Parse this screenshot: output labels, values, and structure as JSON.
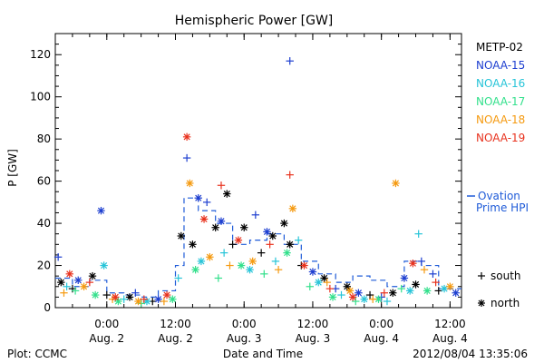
{
  "chart_data": {
    "type": "scatter",
    "title": "Hemispheric Power [GW]",
    "ylabel": "P [GW]",
    "xlabel": "Date and Time",
    "ylim": [
      0,
      130
    ],
    "y_ticks": [
      0,
      20,
      40,
      60,
      80,
      100,
      120
    ],
    "x_ticks": [
      {
        "time": "2012-08-02T00:00",
        "line1": "0:00",
        "line2": "Aug. 2"
      },
      {
        "time": "2012-08-02T12:00",
        "line1": "12:00",
        "line2": "Aug. 2"
      },
      {
        "time": "2012-08-03T00:00",
        "line1": "0:00",
        "line2": "Aug. 3"
      },
      {
        "time": "2012-08-03T12:00",
        "line1": "12:00",
        "line2": "Aug. 3"
      },
      {
        "time": "2012-08-04T00:00",
        "line1": "0:00",
        "line2": "Aug. 4"
      },
      {
        "time": "2012-08-04T12:00",
        "line1": "12:00",
        "line2": "Aug. 4"
      }
    ],
    "x_range": [
      "2012-08-01T15:00",
      "2012-08-04T14:00"
    ],
    "legend_position": "right",
    "symbol_legend": [
      {
        "symbol": "+",
        "label": "south"
      },
      {
        "symbol": "*",
        "label": "north"
      }
    ],
    "series": [
      {
        "name": "METP-02",
        "color": "#000000",
        "points": [
          {
            "x": "2012-08-01T16:00",
            "y": 12,
            "hemisphere": "north"
          },
          {
            "x": "2012-08-01T18:00",
            "y": 9,
            "hemisphere": "south"
          },
          {
            "x": "2012-08-01T21:30",
            "y": 15,
            "hemisphere": "north"
          },
          {
            "x": "2012-08-02T00:00",
            "y": 6,
            "hemisphere": "south"
          },
          {
            "x": "2012-08-02T04:00",
            "y": 5,
            "hemisphere": "north"
          },
          {
            "x": "2012-08-02T08:00",
            "y": 3,
            "hemisphere": "south"
          },
          {
            "x": "2012-08-02T13:00",
            "y": 34,
            "hemisphere": "north"
          },
          {
            "x": "2012-08-02T15:00",
            "y": 30,
            "hemisphere": "north"
          },
          {
            "x": "2012-08-02T19:00",
            "y": 38,
            "hemisphere": "north"
          },
          {
            "x": "2012-08-02T21:00",
            "y": 54,
            "hemisphere": "north"
          },
          {
            "x": "2012-08-02T22:00",
            "y": 30,
            "hemisphere": "south"
          },
          {
            "x": "2012-08-03T00:00",
            "y": 38,
            "hemisphere": "north"
          },
          {
            "x": "2012-08-03T03:00",
            "y": 26,
            "hemisphere": "south"
          },
          {
            "x": "2012-08-03T05:00",
            "y": 34,
            "hemisphere": "north"
          },
          {
            "x": "2012-08-03T07:00",
            "y": 40,
            "hemisphere": "north"
          },
          {
            "x": "2012-08-03T08:00",
            "y": 30,
            "hemisphere": "north"
          },
          {
            "x": "2012-08-03T10:00",
            "y": 20,
            "hemisphere": "south"
          },
          {
            "x": "2012-08-03T14:00",
            "y": 14,
            "hemisphere": "north"
          },
          {
            "x": "2012-08-03T18:00",
            "y": 10,
            "hemisphere": "north"
          },
          {
            "x": "2012-08-03T22:00",
            "y": 6,
            "hemisphere": "south"
          },
          {
            "x": "2012-08-04T02:00",
            "y": 7,
            "hemisphere": "north"
          },
          {
            "x": "2012-08-04T06:00",
            "y": 11,
            "hemisphere": "north"
          },
          {
            "x": "2012-08-04T10:00",
            "y": 8,
            "hemisphere": "south"
          }
        ]
      },
      {
        "name": "NOAA-15",
        "color": "#1e3fd0",
        "points": [
          {
            "x": "2012-08-01T15:30",
            "y": 24,
            "hemisphere": "south"
          },
          {
            "x": "2012-08-01T19:00",
            "y": 13,
            "hemisphere": "north"
          },
          {
            "x": "2012-08-01T23:00",
            "y": 46,
            "hemisphere": "north"
          },
          {
            "x": "2012-08-02T05:00",
            "y": 7,
            "hemisphere": "south"
          },
          {
            "x": "2012-08-02T09:00",
            "y": 4,
            "hemisphere": "north"
          },
          {
            "x": "2012-08-02T14:00",
            "y": 71,
            "hemisphere": "south"
          },
          {
            "x": "2012-08-02T16:00",
            "y": 52,
            "hemisphere": "north"
          },
          {
            "x": "2012-08-02T17:30",
            "y": 50,
            "hemisphere": "south"
          },
          {
            "x": "2012-08-02T20:00",
            "y": 41,
            "hemisphere": "north"
          },
          {
            "x": "2012-08-03T02:00",
            "y": 44,
            "hemisphere": "south"
          },
          {
            "x": "2012-08-03T04:00",
            "y": 36,
            "hemisphere": "north"
          },
          {
            "x": "2012-08-03T08:00",
            "y": 117,
            "hemisphere": "south"
          },
          {
            "x": "2012-08-03T12:00",
            "y": 17,
            "hemisphere": "north"
          },
          {
            "x": "2012-08-03T16:00",
            "y": 9,
            "hemisphere": "south"
          },
          {
            "x": "2012-08-03T20:00",
            "y": 7,
            "hemisphere": "north"
          },
          {
            "x": "2012-08-04T00:00",
            "y": 5,
            "hemisphere": "south"
          },
          {
            "x": "2012-08-04T04:00",
            "y": 14,
            "hemisphere": "north"
          },
          {
            "x": "2012-08-04T07:00",
            "y": 22,
            "hemisphere": "south"
          },
          {
            "x": "2012-08-04T09:00",
            "y": 16,
            "hemisphere": "south"
          },
          {
            "x": "2012-08-04T13:00",
            "y": 7,
            "hemisphere": "north"
          }
        ]
      },
      {
        "name": "NOAA-16",
        "color": "#27c4d8",
        "points": [
          {
            "x": "2012-08-01T17:00",
            "y": 10,
            "hemisphere": "south"
          },
          {
            "x": "2012-08-01T23:30",
            "y": 20,
            "hemisphere": "north"
          },
          {
            "x": "2012-08-02T03:00",
            "y": 4,
            "hemisphere": "south"
          },
          {
            "x": "2012-08-02T07:00",
            "y": 3,
            "hemisphere": "north"
          },
          {
            "x": "2012-08-02T12:30",
            "y": 14,
            "hemisphere": "south"
          },
          {
            "x": "2012-08-02T16:30",
            "y": 22,
            "hemisphere": "north"
          },
          {
            "x": "2012-08-02T20:30",
            "y": 26,
            "hemisphere": "south"
          },
          {
            "x": "2012-08-03T01:00",
            "y": 18,
            "hemisphere": "north"
          },
          {
            "x": "2012-08-03T05:30",
            "y": 22,
            "hemisphere": "south"
          },
          {
            "x": "2012-08-03T09:30",
            "y": 32,
            "hemisphere": "south"
          },
          {
            "x": "2012-08-03T13:00",
            "y": 12,
            "hemisphere": "north"
          },
          {
            "x": "2012-08-03T17:00",
            "y": 6,
            "hemisphere": "south"
          },
          {
            "x": "2012-08-03T21:00",
            "y": 4,
            "hemisphere": "north"
          },
          {
            "x": "2012-08-04T01:00",
            "y": 3,
            "hemisphere": "south"
          },
          {
            "x": "2012-08-04T05:00",
            "y": 8,
            "hemisphere": "north"
          },
          {
            "x": "2012-08-04T06:30",
            "y": 35,
            "hemisphere": "south"
          },
          {
            "x": "2012-08-04T11:00",
            "y": 9,
            "hemisphere": "north"
          }
        ]
      },
      {
        "name": "NOAA-17",
        "color": "#33e08c",
        "points": [
          {
            "x": "2012-08-01T18:30",
            "y": 8,
            "hemisphere": "south"
          },
          {
            "x": "2012-08-01T22:00",
            "y": 6,
            "hemisphere": "north"
          },
          {
            "x": "2012-08-02T02:00",
            "y": 3,
            "hemisphere": "north"
          },
          {
            "x": "2012-08-02T06:00",
            "y": 2,
            "hemisphere": "south"
          },
          {
            "x": "2012-08-02T11:30",
            "y": 4,
            "hemisphere": "north"
          },
          {
            "x": "2012-08-02T15:30",
            "y": 18,
            "hemisphere": "north"
          },
          {
            "x": "2012-08-02T19:30",
            "y": 14,
            "hemisphere": "south"
          },
          {
            "x": "2012-08-02T23:30",
            "y": 20,
            "hemisphere": "north"
          },
          {
            "x": "2012-08-03T03:30",
            "y": 16,
            "hemisphere": "south"
          },
          {
            "x": "2012-08-03T07:30",
            "y": 26,
            "hemisphere": "north"
          },
          {
            "x": "2012-08-03T11:30",
            "y": 10,
            "hemisphere": "south"
          },
          {
            "x": "2012-08-03T15:30",
            "y": 5,
            "hemisphere": "north"
          },
          {
            "x": "2012-08-03T19:30",
            "y": 3,
            "hemisphere": "south"
          },
          {
            "x": "2012-08-03T23:30",
            "y": 4,
            "hemisphere": "north"
          },
          {
            "x": "2012-08-04T03:30",
            "y": 9,
            "hemisphere": "south"
          },
          {
            "x": "2012-08-04T08:00",
            "y": 8,
            "hemisphere": "north"
          }
        ]
      },
      {
        "name": "NOAA-18",
        "color": "#f59a10",
        "points": [
          {
            "x": "2012-08-01T16:30",
            "y": 7,
            "hemisphere": "south"
          },
          {
            "x": "2012-08-01T20:00",
            "y": 10,
            "hemisphere": "north"
          },
          {
            "x": "2012-08-02T01:00",
            "y": 4,
            "hemisphere": "south"
          },
          {
            "x": "2012-08-02T05:30",
            "y": 3,
            "hemisphere": "north"
          },
          {
            "x": "2012-08-02T10:00",
            "y": 3,
            "hemisphere": "south"
          },
          {
            "x": "2012-08-02T14:30",
            "y": 59,
            "hemisphere": "north"
          },
          {
            "x": "2012-08-02T18:00",
            "y": 24,
            "hemisphere": "north"
          },
          {
            "x": "2012-08-02T21:30",
            "y": 20,
            "hemisphere": "south"
          },
          {
            "x": "2012-08-03T01:30",
            "y": 22,
            "hemisphere": "north"
          },
          {
            "x": "2012-08-03T06:00",
            "y": 18,
            "hemisphere": "south"
          },
          {
            "x": "2012-08-03T08:30",
            "y": 47,
            "hemisphere": "north"
          },
          {
            "x": "2012-08-03T14:30",
            "y": 12,
            "hemisphere": "south"
          },
          {
            "x": "2012-08-03T18:30",
            "y": 8,
            "hemisphere": "north"
          },
          {
            "x": "2012-08-03T22:30",
            "y": 4,
            "hemisphere": "south"
          },
          {
            "x": "2012-08-04T02:30",
            "y": 59,
            "hemisphere": "north"
          },
          {
            "x": "2012-08-04T07:30",
            "y": 18,
            "hemisphere": "south"
          },
          {
            "x": "2012-08-04T12:00",
            "y": 10,
            "hemisphere": "north"
          }
        ]
      },
      {
        "name": "NOAA-19",
        "color": "#e8321e",
        "points": [
          {
            "x": "2012-08-01T17:30",
            "y": 16,
            "hemisphere": "north"
          },
          {
            "x": "2012-08-01T21:00",
            "y": 12,
            "hemisphere": "south"
          },
          {
            "x": "2012-08-02T01:30",
            "y": 5,
            "hemisphere": "north"
          },
          {
            "x": "2012-08-02T06:30",
            "y": 4,
            "hemisphere": "south"
          },
          {
            "x": "2012-08-02T10:30",
            "y": 6,
            "hemisphere": "north"
          },
          {
            "x": "2012-08-02T14:00",
            "y": 81,
            "hemisphere": "north"
          },
          {
            "x": "2012-08-02T17:00",
            "y": 42,
            "hemisphere": "north"
          },
          {
            "x": "2012-08-02T20:00",
            "y": 58,
            "hemisphere": "south"
          },
          {
            "x": "2012-08-02T23:00",
            "y": 32,
            "hemisphere": "north"
          },
          {
            "x": "2012-08-03T04:30",
            "y": 30,
            "hemisphere": "south"
          },
          {
            "x": "2012-08-03T08:00",
            "y": 63,
            "hemisphere": "south"
          },
          {
            "x": "2012-08-03T10:30",
            "y": 20,
            "hemisphere": "north"
          },
          {
            "x": "2012-08-03T15:00",
            "y": 9,
            "hemisphere": "south"
          },
          {
            "x": "2012-08-03T19:00",
            "y": 5,
            "hemisphere": "north"
          },
          {
            "x": "2012-08-04T00:30",
            "y": 7,
            "hemisphere": "south"
          },
          {
            "x": "2012-08-04T05:30",
            "y": 21,
            "hemisphere": "north"
          },
          {
            "x": "2012-08-04T09:30",
            "y": 12,
            "hemisphere": "south"
          }
        ]
      },
      {
        "name": "Ovation Prime HPI",
        "label_lines": [
          "Ovation",
          "Prime HPI"
        ],
        "color": "#1f5bd8",
        "style": "dashed-step",
        "points": [
          {
            "x": "2012-08-01T15:00",
            "y": 14
          },
          {
            "x": "2012-08-01T18:00",
            "y": 10
          },
          {
            "x": "2012-08-01T21:00",
            "y": 13
          },
          {
            "x": "2012-08-02T00:00",
            "y": 7
          },
          {
            "x": "2012-08-02T03:00",
            "y": 6
          },
          {
            "x": "2012-08-02T06:00",
            "y": 5
          },
          {
            "x": "2012-08-02T09:00",
            "y": 8
          },
          {
            "x": "2012-08-02T12:00",
            "y": 20
          },
          {
            "x": "2012-08-02T13:30",
            "y": 52
          },
          {
            "x": "2012-08-02T16:00",
            "y": 46
          },
          {
            "x": "2012-08-02T19:00",
            "y": 40
          },
          {
            "x": "2012-08-02T22:00",
            "y": 30
          },
          {
            "x": "2012-08-03T01:00",
            "y": 32
          },
          {
            "x": "2012-08-03T04:00",
            "y": 35
          },
          {
            "x": "2012-08-03T07:00",
            "y": 30
          },
          {
            "x": "2012-08-03T10:00",
            "y": 22
          },
          {
            "x": "2012-08-03T13:00",
            "y": 16
          },
          {
            "x": "2012-08-03T16:00",
            "y": 12
          },
          {
            "x": "2012-08-03T19:00",
            "y": 15
          },
          {
            "x": "2012-08-03T22:00",
            "y": 13
          },
          {
            "x": "2012-08-04T01:00",
            "y": 10
          },
          {
            "x": "2012-08-04T04:00",
            "y": 22
          },
          {
            "x": "2012-08-04T07:00",
            "y": 20
          },
          {
            "x": "2012-08-04T10:00",
            "y": 9
          },
          {
            "x": "2012-08-04T14:00",
            "y": 9
          }
        ]
      }
    ]
  },
  "footer": {
    "left": "Plot: CCMC",
    "right": "2012/08/04 13:35:06"
  }
}
